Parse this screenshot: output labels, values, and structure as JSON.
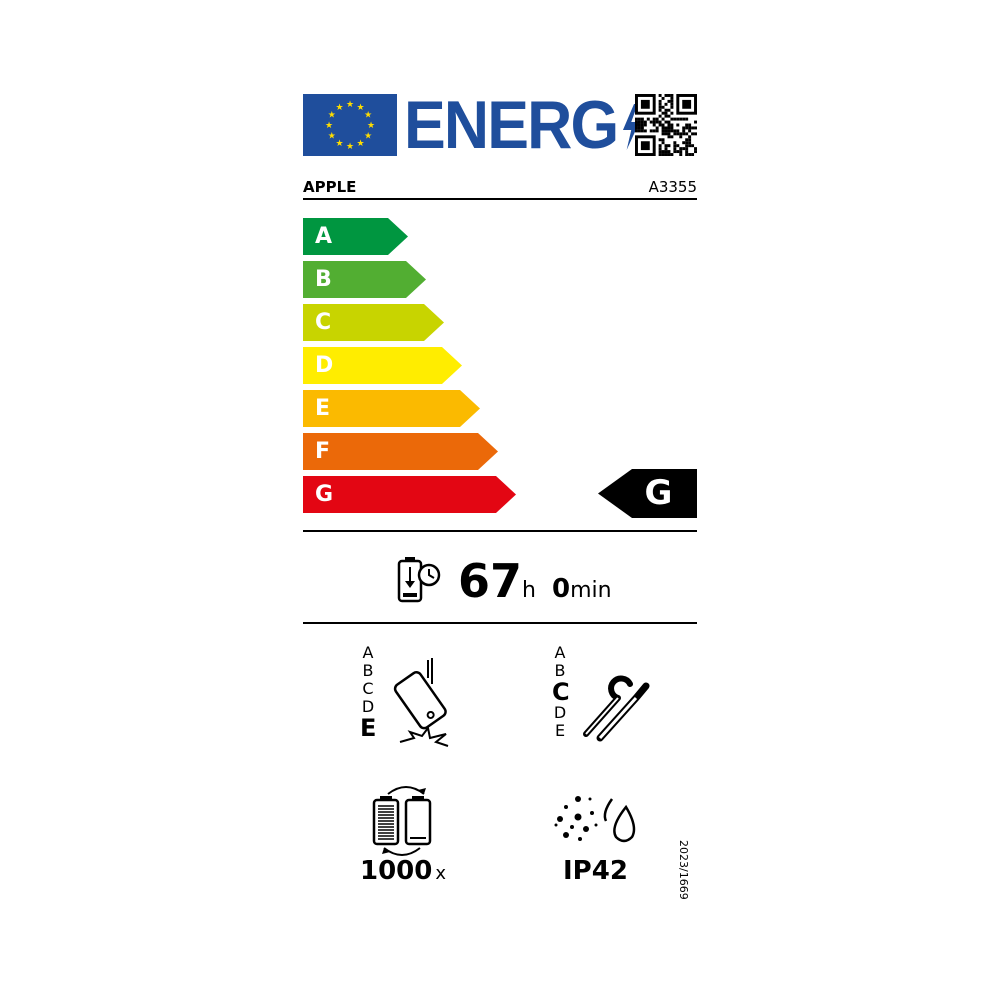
{
  "header": {
    "logo_text": "ENERG",
    "brand": "APPLE",
    "model": "A3355"
  },
  "colors": {
    "eu_blue": "#1f4e9c",
    "star": "#ffdd00",
    "A": "#009640",
    "B": "#52ae32",
    "C": "#c8d400",
    "D": "#ffed00",
    "E": "#fbba00",
    "F": "#eb6909",
    "G": "#e30613"
  },
  "energy_scale": {
    "classes": [
      "A",
      "B",
      "C",
      "D",
      "E",
      "F",
      "G"
    ],
    "rating": "G"
  },
  "battery_endurance": {
    "hours": "67",
    "hours_unit": "h",
    "minutes": "0",
    "minutes_unit": "min"
  },
  "drop_resistance": {
    "classes": [
      "A",
      "B",
      "C",
      "D",
      "E"
    ],
    "rating": "E"
  },
  "repairability": {
    "classes": [
      "A",
      "B",
      "C",
      "D",
      "E"
    ],
    "rating": "C"
  },
  "battery_cycles": {
    "value": "1000",
    "unit": "x"
  },
  "ingress_protection": {
    "value": "IP42"
  },
  "regulation": "2023/1669"
}
